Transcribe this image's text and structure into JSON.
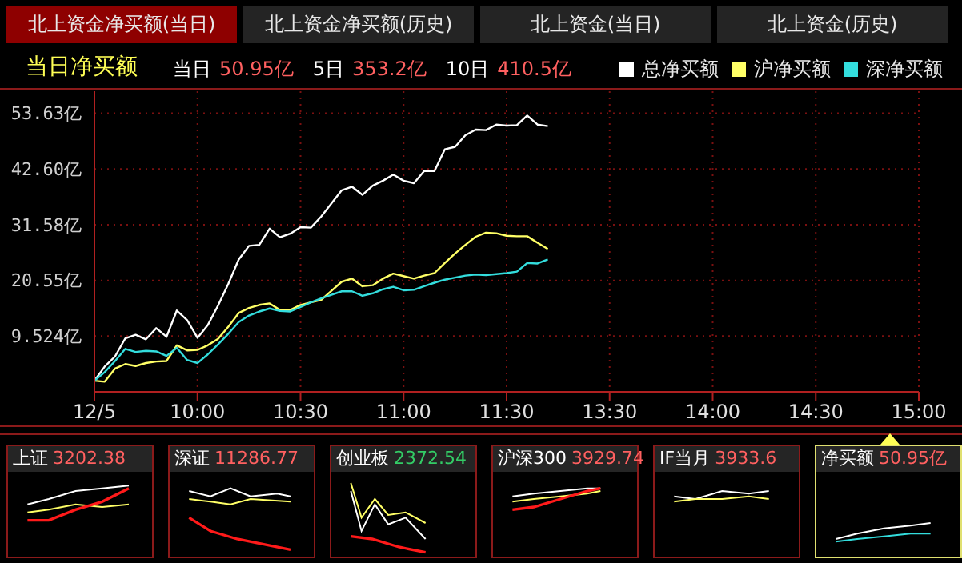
{
  "chart_data": {
    "type": "line",
    "title": "当日净买额",
    "annotations": [
      "北上资金净买额(当日)",
      "北上资金净买额(历史)",
      "北上资金(当日)",
      "北上资金(历史)",
      "当日",
      "50.95亿",
      "5日",
      "353.2亿",
      "10日",
      "410.5亿",
      "上证",
      "3202.38",
      "深证",
      "11286.77",
      "创业板",
      "2372.54",
      "沪深300",
      "3929.74",
      "IF当月",
      "3933.6",
      "净买额",
      "50.95亿"
    ],
    "categories": [
      "12/5",
      null,
      null,
      null,
      null,
      null,
      null,
      null,
      null,
      null,
      "10:00",
      null,
      null,
      null,
      null,
      null,
      null,
      null,
      null,
      null,
      "10:30",
      null,
      null,
      null,
      null,
      null,
      null,
      null,
      null,
      null,
      "11:00",
      null,
      null,
      null,
      null,
      null,
      null,
      null,
      null,
      null,
      "11:30",
      null,
      null,
      null,
      null,
      null,
      null,
      null,
      null,
      null,
      "13:30",
      null,
      null,
      null,
      null,
      null,
      null,
      null,
      null,
      null,
      "14:00",
      null,
      null,
      null,
      null,
      null,
      null,
      null,
      null,
      null,
      "14:30",
      null,
      null,
      null,
      null,
      null,
      null,
      null,
      null,
      null,
      "15:00"
    ],
    "ylim": [
      -1.5,
      58
    ],
    "yticks": [
      {
        "value": 9.524,
        "label": "9.524亿"
      },
      {
        "value": 20.55,
        "label": "20.55亿"
      },
      {
        "value": 31.58,
        "label": "31.58亿"
      },
      {
        "value": 42.6,
        "label": "42.60亿"
      },
      {
        "value": 53.63,
        "label": "53.63亿"
      }
    ],
    "grid": true,
    "legend": "top right",
    "marker": "none",
    "line_style": "solid",
    "series": [
      {
        "name": "总净买额",
        "color": "#ffffff",
        "values": [
          0.7,
          3.5,
          5.5,
          9.1,
          9.8,
          8.9,
          11.1,
          9.4,
          14.6,
          12.7,
          9.2,
          11.7,
          15.6,
          19.9,
          24.7,
          27.4,
          27.6,
          30.8,
          29.1,
          29.8,
          31.1,
          31.0,
          33.2,
          35.8,
          38.4,
          39.1,
          37.5,
          39.3,
          40.3,
          41.5,
          40.3,
          39.8,
          42.2,
          42.2,
          46.5,
          47.0,
          49.3,
          50.4,
          50.3,
          51.4,
          51.2,
          51.3,
          53.2,
          51.4,
          51.1,
          null,
          null,
          null,
          null,
          null,
          null,
          null,
          null,
          null,
          null,
          null,
          null,
          null,
          null,
          null,
          null,
          null,
          null,
          null,
          null,
          null,
          null,
          null,
          null,
          null,
          null,
          null,
          null,
          null,
          null,
          null,
          null,
          null,
          null,
          null,
          null
        ]
      },
      {
        "name": "沪净买额",
        "color": "#ffff66",
        "values": [
          0.7,
          0.5,
          3.1,
          4.0,
          3.6,
          4.2,
          4.5,
          4.6,
          7.7,
          6.7,
          6.8,
          7.7,
          9.0,
          11.4,
          14.1,
          15.1,
          15.7,
          16.0,
          14.7,
          14.7,
          15.7,
          16.2,
          16.7,
          18.5,
          20.3,
          20.9,
          19.4,
          19.6,
          20.9,
          21.9,
          21.4,
          20.9,
          21.5,
          22.0,
          24.0,
          25.9,
          27.6,
          29.2,
          30.0,
          29.9,
          29.4,
          29.3,
          29.3,
          28.0,
          26.8,
          null,
          null,
          null,
          null,
          null,
          null,
          null,
          null,
          null,
          null,
          null,
          null,
          null,
          null,
          null,
          null,
          null,
          null,
          null,
          null,
          null,
          null,
          null,
          null,
          null,
          null,
          null,
          null,
          null,
          null,
          null,
          null,
          null,
          null,
          null,
          null
        ]
      },
      {
        "name": "深净买额",
        "color": "#33dddd",
        "values": [
          0.7,
          2.4,
          4.6,
          7.0,
          6.4,
          6.6,
          6.5,
          5.6,
          7.2,
          4.8,
          4.2,
          5.9,
          7.9,
          10.0,
          12.3,
          13.6,
          14.4,
          15.0,
          14.5,
          14.4,
          15.3,
          16.2,
          17.0,
          17.7,
          18.4,
          18.4,
          17.5,
          18.0,
          18.8,
          19.3,
          18.6,
          18.7,
          19.4,
          20.1,
          20.7,
          21.1,
          21.5,
          21.7,
          21.6,
          21.8,
          22.0,
          22.3,
          24.0,
          23.9,
          24.7,
          null,
          null,
          null,
          null,
          null,
          null,
          null,
          null,
          null,
          null,
          null,
          null,
          null,
          null,
          null,
          null,
          null,
          null,
          null,
          null,
          null,
          null,
          null,
          null,
          null,
          null,
          null,
          null,
          null,
          null,
          null,
          null,
          null,
          null,
          null,
          null
        ]
      }
    ]
  }
}
